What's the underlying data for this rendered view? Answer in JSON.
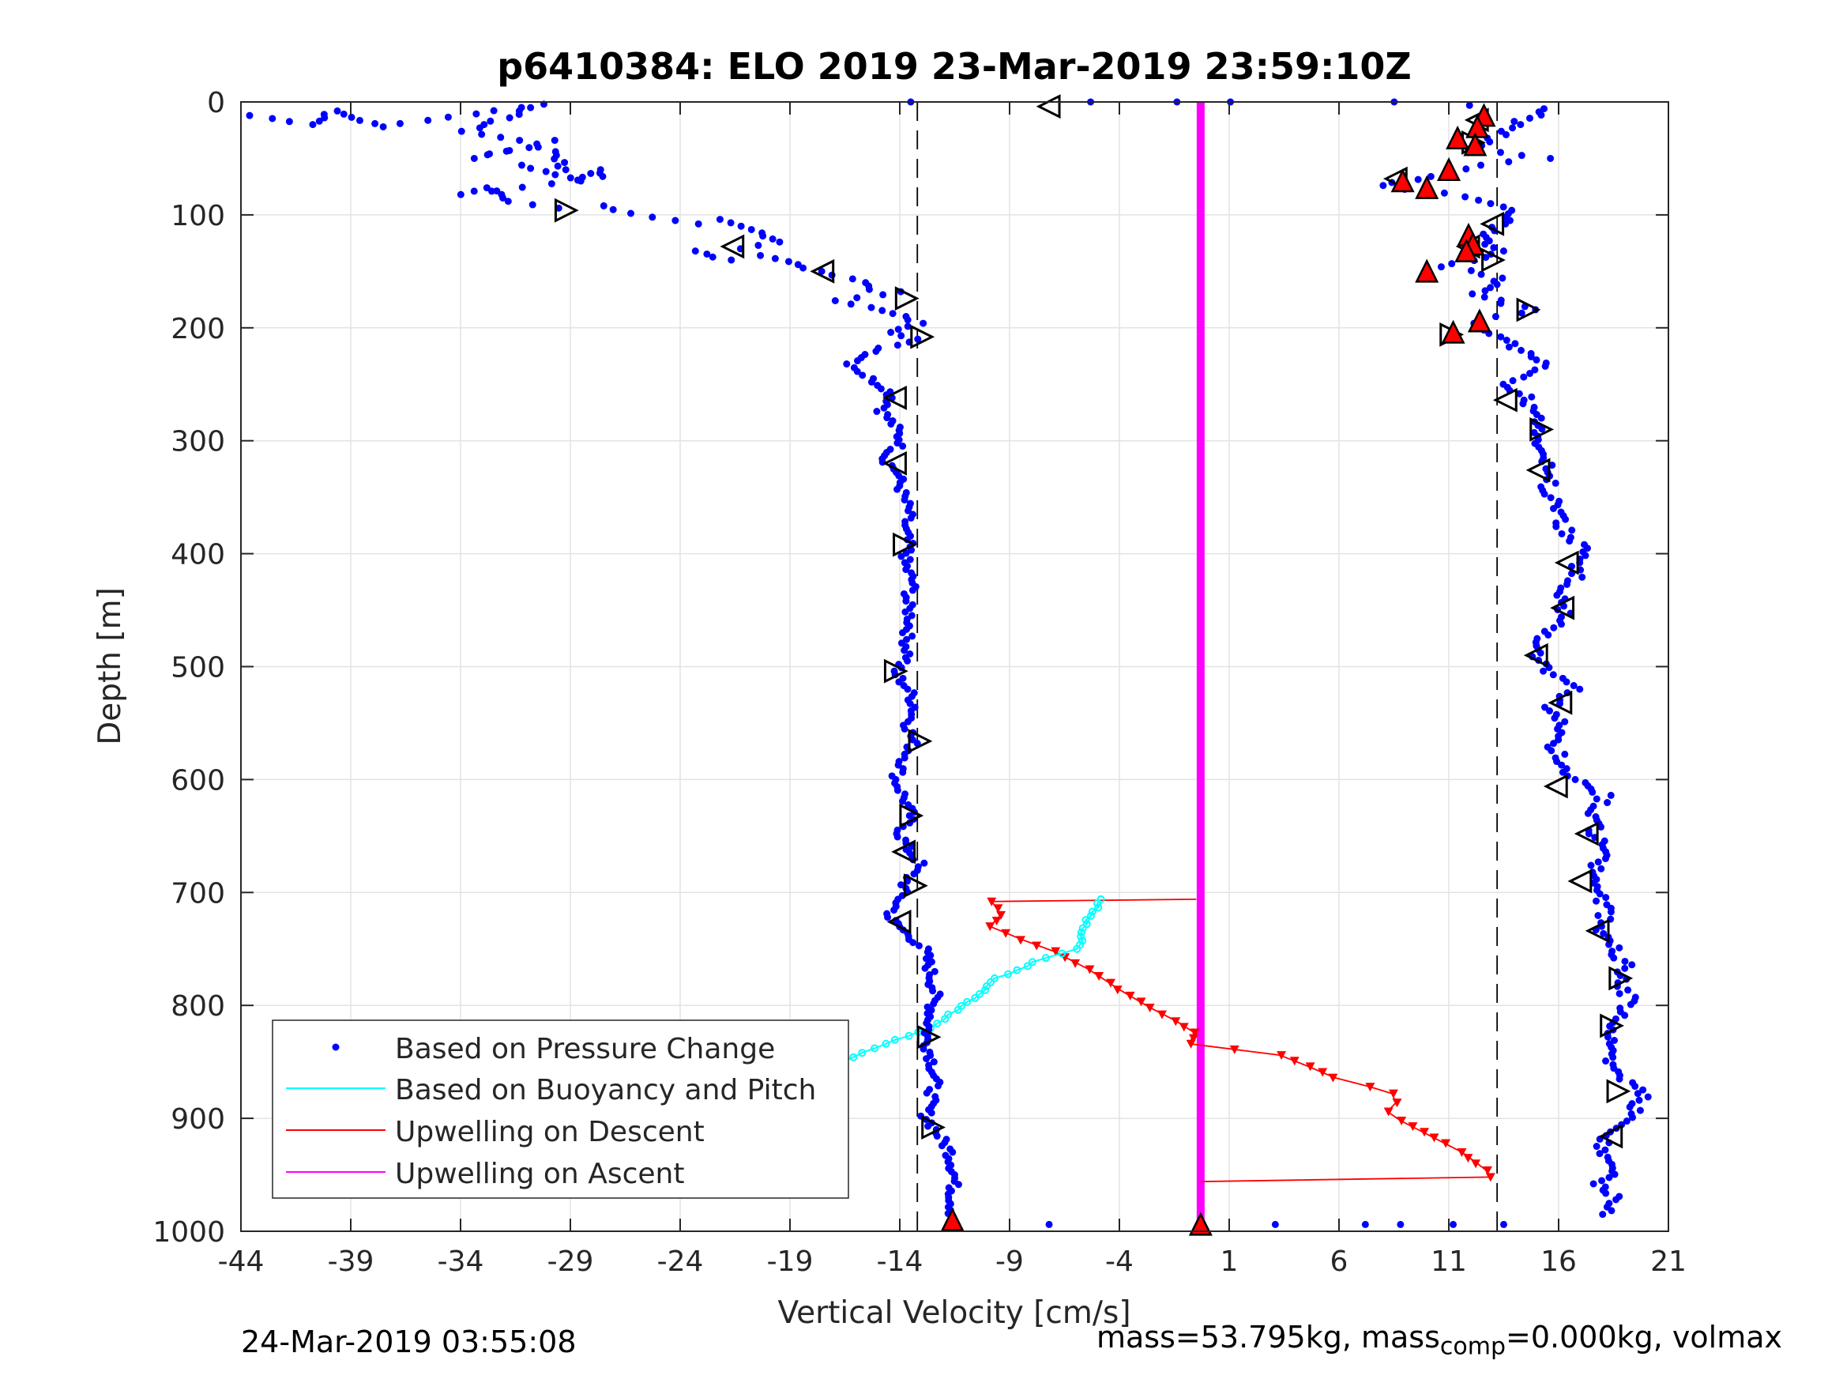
{
  "chart_data": {
    "type": "scatter",
    "title": "p6410384: ELO 2019 23-Mar-2019 23:59:10Z",
    "xlabel": "Vertical Velocity [cm/s]",
    "ylabel": "Depth [m]",
    "xlim": [
      -44,
      21
    ],
    "ylim": [
      0,
      1000
    ],
    "y_reversed": true,
    "grid": true,
    "xticks": [
      -44,
      -39,
      -34,
      -29,
      -24,
      -19,
      -14,
      -9,
      -4,
      1,
      6,
      11,
      16,
      21
    ],
    "yticks": [
      0,
      100,
      200,
      300,
      400,
      500,
      600,
      700,
      800,
      900,
      1000
    ],
    "reference_lines": [
      {
        "x": -13.2,
        "style": "dashed",
        "color": "#000000"
      },
      {
        "x": 13.2,
        "style": "dashed",
        "color": "#000000"
      }
    ],
    "legend_placement": "bottom-left",
    "series": [
      {
        "name": "Based on Pressure Change",
        "color": "#0000ff",
        "marker": "dot",
        "down_cast": [
          [
            -43.6,
            12
          ],
          [
            -40.6,
            20
          ],
          [
            -39.8,
            8
          ],
          [
            -37.6,
            22
          ],
          [
            -30.2,
            2
          ],
          [
            -33.8,
            26
          ],
          [
            -31.4,
            34
          ],
          [
            -29.6,
            34
          ],
          [
            -33.4,
            50
          ],
          [
            -32.6,
            46
          ],
          [
            -30.6,
            40
          ],
          [
            -29.6,
            44
          ],
          [
            -29.4,
            60
          ],
          [
            -31.2,
            56
          ],
          [
            -28.6,
            70
          ],
          [
            -27.6,
            60
          ],
          [
            -27.3,
            66
          ],
          [
            -33.9,
            82
          ],
          [
            -32.8,
            76
          ],
          [
            -31.8,
            88
          ],
          [
            -29.4,
            94
          ],
          [
            -27.6,
            92
          ],
          [
            -25.4,
            102
          ],
          [
            -23.4,
            108
          ],
          [
            -22.4,
            104
          ],
          [
            -20.3,
            116
          ],
          [
            -19.4,
            124
          ],
          [
            -21.2,
            130
          ],
          [
            -23.4,
            132
          ],
          [
            -21.9,
            140
          ],
          [
            -20.1,
            136
          ],
          [
            -18.6,
            144
          ],
          [
            -17.8,
            150
          ],
          [
            -15.6,
            160
          ],
          [
            -15.2,
            166
          ],
          [
            -14.1,
            168
          ],
          [
            -16.7,
            176
          ],
          [
            -15.4,
            182
          ],
          [
            -13.9,
            190
          ],
          [
            -13.1,
            196
          ],
          [
            -14.2,
            204
          ],
          [
            -13.2,
            210
          ],
          [
            -14.8,
            218
          ],
          [
            -16.2,
            232
          ],
          [
            -15.6,
            242
          ],
          [
            -14.6,
            254
          ],
          [
            -14.3,
            262
          ],
          [
            -14.8,
            274
          ],
          [
            -14.2,
            288
          ],
          [
            -13.9,
            302
          ],
          [
            -14.7,
            316
          ],
          [
            -14.1,
            328
          ],
          [
            -13.9,
            346
          ],
          [
            -13.6,
            362
          ],
          [
            -13.8,
            378
          ],
          [
            -13.6,
            394
          ],
          [
            -13.8,
            408
          ],
          [
            -13.4,
            426
          ],
          [
            -13.7,
            442
          ],
          [
            -13.5,
            458
          ],
          [
            -13.7,
            476
          ],
          [
            -13.6,
            492
          ],
          [
            -14.3,
            504
          ],
          [
            -13.6,
            520
          ],
          [
            -13.3,
            536
          ],
          [
            -13.6,
            552
          ],
          [
            -13.4,
            568
          ],
          [
            -13.8,
            584
          ],
          [
            -14.2,
            600
          ],
          [
            -13.8,
            616
          ],
          [
            -13.5,
            632
          ],
          [
            -14.0,
            648
          ],
          [
            -13.6,
            662
          ],
          [
            -13.1,
            674
          ],
          [
            -13.7,
            690
          ],
          [
            -14.0,
            706
          ],
          [
            -14.5,
            722
          ],
          [
            -13.7,
            736
          ],
          [
            -12.9,
            750
          ],
          [
            -12.6,
            770
          ],
          [
            -12.4,
            790
          ],
          [
            -12.6,
            810
          ],
          [
            -12.8,
            830
          ],
          [
            -12.5,
            850
          ],
          [
            -12.4,
            868
          ],
          [
            -12.6,
            884
          ],
          [
            -12.8,
            898
          ],
          [
            -12.4,
            910
          ],
          [
            -11.7,
            930
          ],
          [
            -11.5,
            950
          ],
          [
            -11.6,
            970
          ],
          [
            -11.6,
            990
          ]
        ],
        "up_cast": [
          [
            17.9,
            985
          ],
          [
            18.8,
            972
          ],
          [
            17.7,
            958
          ],
          [
            18.6,
            944
          ],
          [
            17.9,
            928
          ],
          [
            18.4,
            912
          ],
          [
            19.4,
            896
          ],
          [
            19.9,
            878
          ],
          [
            18.6,
            862
          ],
          [
            18.2,
            846
          ],
          [
            18.4,
            828
          ],
          [
            18.6,
            812
          ],
          [
            19.3,
            796
          ],
          [
            18.8,
            780
          ],
          [
            19.1,
            764
          ],
          [
            18.3,
            746
          ],
          [
            17.9,
            730
          ],
          [
            18.2,
            714
          ],
          [
            17.7,
            698
          ],
          [
            17.5,
            682
          ],
          [
            18.3,
            664
          ],
          [
            17.7,
            648
          ],
          [
            17.4,
            630
          ],
          [
            18.2,
            614
          ],
          [
            16.6,
            600
          ],
          [
            16.2,
            584
          ],
          [
            15.7,
            568
          ],
          [
            16.1,
            552
          ],
          [
            15.6,
            536
          ],
          [
            16.7,
            520
          ],
          [
            15.5,
            504
          ],
          [
            15.0,
            488
          ],
          [
            15.4,
            472
          ],
          [
            16.3,
            456
          ],
          [
            16.0,
            440
          ],
          [
            16.7,
            424
          ],
          [
            16.9,
            408
          ],
          [
            17.0,
            392
          ],
          [
            16.1,
            376
          ],
          [
            15.9,
            360
          ],
          [
            15.4,
            344
          ],
          [
            15.8,
            328
          ],
          [
            15.3,
            312
          ],
          [
            14.9,
            296
          ],
          [
            15.0,
            280
          ],
          [
            14.6,
            264
          ],
          [
            13.8,
            250
          ],
          [
            15.4,
            234
          ],
          [
            14.2,
            220
          ],
          [
            13.2,
            208
          ],
          [
            12.1,
            196
          ],
          [
            14.6,
            184
          ],
          [
            12.3,
            170
          ],
          [
            13.5,
            156
          ],
          [
            11.0,
            146
          ],
          [
            13.4,
            132
          ],
          [
            12.4,
            120
          ],
          [
            13.6,
            108
          ],
          [
            14.2,
            96
          ],
          [
            11.8,
            84
          ],
          [
            7.9,
            74
          ],
          [
            10.2,
            66
          ],
          [
            12.6,
            56
          ],
          [
            15.4,
            50
          ],
          [
            12.1,
            42
          ],
          [
            13.1,
            32
          ],
          [
            14.0,
            20
          ],
          [
            15.5,
            6
          ],
          [
            8.4,
            0
          ],
          [
            1.4,
            0
          ],
          [
            -1.7,
            0
          ],
          [
            -5.2,
            0
          ],
          [
            -13.5,
            0
          ]
        ]
      },
      {
        "name": "Based on Buoyancy and Pitch",
        "color": "#00ffff",
        "points": [
          [
            -4.8,
            706
          ],
          [
            -5.6,
            728
          ],
          [
            -5.9,
            750
          ],
          [
            -7.4,
            758
          ],
          [
            -9.6,
            776
          ],
          [
            -10.4,
            790
          ],
          [
            -11.4,
            804
          ],
          [
            -12.6,
            820
          ],
          [
            -14.6,
            834
          ],
          [
            -16.6,
            850
          ],
          [
            -18.6,
            868
          ],
          [
            -20.0,
            880
          ],
          [
            -21.2,
            892
          ],
          [
            -22.8,
            904
          ],
          [
            -24.0,
            916
          ],
          [
            -25.0,
            924
          ],
          [
            -24.8,
            936
          ],
          [
            -24.6,
            948
          ]
        ]
      },
      {
        "name": "Upwelling on Descent",
        "color": "#ff0000",
        "marker": "triangle-down",
        "points": [
          [
            -0.5,
            706
          ],
          [
            -9.8,
            708
          ],
          [
            -9.4,
            720
          ],
          [
            -9.9,
            730
          ],
          [
            -8.4,
            742
          ],
          [
            -7.0,
            752
          ],
          [
            -5.4,
            768
          ],
          [
            -4.0,
            786
          ],
          [
            -2.6,
            802
          ],
          [
            -1.4,
            814
          ],
          [
            -0.6,
            824
          ],
          [
            -0.8,
            834
          ],
          [
            3.3,
            844
          ],
          [
            4.6,
            854
          ],
          [
            5.8,
            864
          ],
          [
            7.4,
            872
          ],
          [
            8.4,
            878
          ],
          [
            8.6,
            886
          ],
          [
            8.2,
            894
          ],
          [
            8.8,
            902
          ],
          [
            9.8,
            912
          ],
          [
            10.8,
            922
          ],
          [
            11.6,
            930
          ],
          [
            12.3,
            940
          ],
          [
            12.7,
            946
          ],
          [
            12.9,
            952
          ],
          [
            -0.3,
            956
          ]
        ]
      },
      {
        "name": "Upwelling on Ascent",
        "color": "#ff00ff",
        "x_constant": -0.3,
        "y_range": [
          0,
          990
        ]
      }
    ],
    "open_triangle_markers": [
      [
        -7.2,
        4,
        "left"
      ],
      [
        -29.2,
        96,
        "right"
      ],
      [
        -21.6,
        128,
        "left"
      ],
      [
        -17.5,
        150,
        "left"
      ],
      [
        -13.7,
        174,
        "right"
      ],
      [
        -13.0,
        208,
        "right"
      ],
      [
        -14.2,
        262,
        "left"
      ],
      [
        -14.2,
        320,
        "left"
      ],
      [
        -13.8,
        392,
        "right"
      ],
      [
        -14.2,
        504,
        "right"
      ],
      [
        -13.1,
        566,
        "right"
      ],
      [
        -13.5,
        632,
        "right"
      ],
      [
        -13.8,
        664,
        "left"
      ],
      [
        -13.3,
        694,
        "right"
      ],
      [
        -14.0,
        726,
        "left"
      ],
      [
        -12.7,
        828,
        "right"
      ],
      [
        -12.5,
        908,
        "right"
      ],
      [
        12.3,
        16,
        "left"
      ],
      [
        12.1,
        36,
        "right"
      ],
      [
        8.6,
        68,
        "left"
      ],
      [
        13.0,
        108,
        "left"
      ],
      [
        11.9,
        128,
        "left"
      ],
      [
        13.0,
        140,
        "right"
      ],
      [
        14.6,
        184,
        "right"
      ],
      [
        11.1,
        206,
        "right"
      ],
      [
        13.6,
        264,
        "left"
      ],
      [
        15.2,
        290,
        "right"
      ],
      [
        15.1,
        326,
        "left"
      ],
      [
        16.4,
        408,
        "left"
      ],
      [
        16.2,
        448,
        "left"
      ],
      [
        15.0,
        490,
        "left"
      ],
      [
        16.1,
        532,
        "left"
      ],
      [
        15.9,
        606,
        "left"
      ],
      [
        17.3,
        648,
        "left"
      ],
      [
        17.0,
        690,
        "left"
      ],
      [
        17.8,
        734,
        "left"
      ],
      [
        18.8,
        776,
        "right"
      ],
      [
        18.4,
        818,
        "right"
      ],
      [
        18.7,
        876,
        "right"
      ],
      [
        18.4,
        916,
        "left"
      ]
    ],
    "red_filled_triangles": [
      [
        12.6,
        12
      ],
      [
        12.3,
        22
      ],
      [
        11.4,
        32
      ],
      [
        12.2,
        38
      ],
      [
        11.0,
        60
      ],
      [
        8.9,
        70
      ],
      [
        10.0,
        76
      ],
      [
        11.9,
        118
      ],
      [
        12.1,
        126
      ],
      [
        11.8,
        132
      ],
      [
        10.0,
        150
      ],
      [
        12.4,
        194
      ],
      [
        11.2,
        204
      ],
      [
        -11.6,
        990
      ],
      [
        -0.3,
        994
      ]
    ],
    "extra_points": [
      [
        -7.2,
        994
      ],
      [
        3.1,
        994
      ],
      [
        7.2,
        994
      ],
      [
        8.8,
        994
      ],
      [
        11.2,
        994
      ],
      [
        13.5,
        994
      ]
    ]
  },
  "footer": {
    "left_timestamp": "24-Mar-2019 03:55:08",
    "mass_text": "mass=53.795kg, mass",
    "mass_sub": "comp",
    "mass_tail": "=0.000kg, volmax"
  }
}
